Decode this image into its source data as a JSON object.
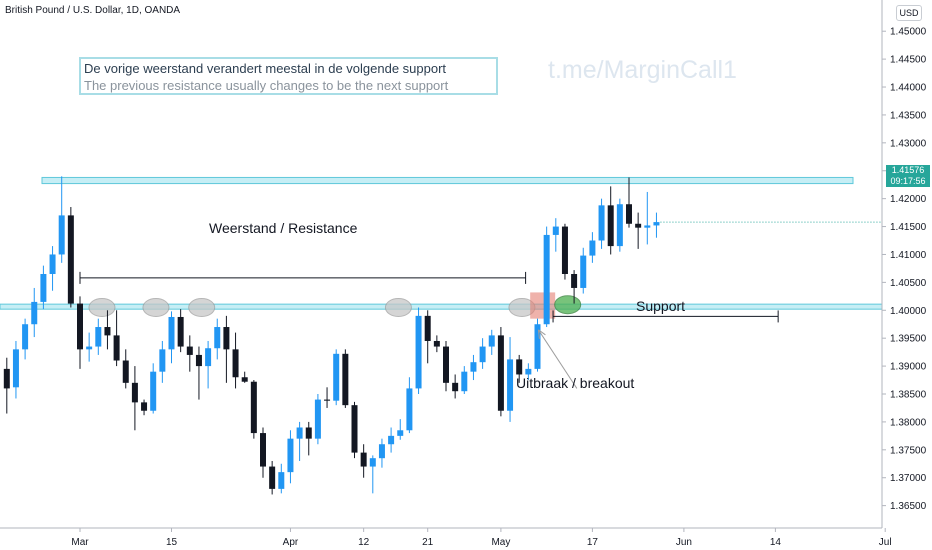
{
  "header": {
    "symbol": "British Pound / U.S. Dollar, 1D, OANDA",
    "currency": "USD"
  },
  "annotations": {
    "line1": "De vorige weerstand verandert meestal in de volgende support",
    "line2": "The previous resistance usually changes to be the next support",
    "watermark": "t.me/MarginCall1",
    "resistance_label": "Weerstand / Resistance",
    "support_label": "Support",
    "breakout_label": "Uitbraak / breakout"
  },
  "price_tag": {
    "price": "1.41576",
    "time": "09:17:56"
  },
  "colors": {
    "up": "#2196f3",
    "down": "#131722",
    "zone": "#c6eef5",
    "zone_border": "#5fc8da",
    "tag": "#26a69a"
  },
  "chart_data": {
    "type": "candlestick",
    "ylim": [
      1.3635,
      1.4538
    ],
    "y_ticks": [
      "1.45000",
      "1.44500",
      "1.44000",
      "1.43500",
      "1.43000",
      "1.42500",
      "1.42000",
      "1.41500",
      "1.41000",
      "1.40500",
      "1.40000",
      "1.39500",
      "1.39000",
      "1.38500",
      "1.38000",
      "1.37500",
      "1.37000",
      "1.36500"
    ],
    "x_ticks": [
      {
        "label": "Mar",
        "day": 0
      },
      {
        "label": "15",
        "day": 10
      },
      {
        "label": "Apr",
        "day": 23
      },
      {
        "label": "12",
        "day": 31
      },
      {
        "label": "21",
        "day": 38
      },
      {
        "label": "May",
        "day": 46
      },
      {
        "label": "17",
        "day": 56
      },
      {
        "label": "Jun",
        "day": 66
      },
      {
        "label": "14",
        "day": 76
      },
      {
        "label": "Jul",
        "day": 88
      }
    ],
    "candles": [
      {
        "day": -8,
        "o": 1.3895,
        "h": 1.3915,
        "l": 1.3815,
        "c": 1.386
      },
      {
        "day": -7,
        "o": 1.3862,
        "h": 1.3945,
        "l": 1.3842,
        "c": 1.393
      },
      {
        "day": -6,
        "o": 1.393,
        "h": 1.3985,
        "l": 1.3912,
        "c": 1.3975
      },
      {
        "day": -5,
        "o": 1.3975,
        "h": 1.404,
        "l": 1.3952,
        "c": 1.4015
      },
      {
        "day": -4,
        "o": 1.4015,
        "h": 1.408,
        "l": 1.4002,
        "c": 1.4065
      },
      {
        "day": -3,
        "o": 1.4065,
        "h": 1.4115,
        "l": 1.4035,
        "c": 1.41
      },
      {
        "day": -2,
        "o": 1.41,
        "h": 1.424,
        "l": 1.4085,
        "c": 1.417
      },
      {
        "day": -1,
        "o": 1.417,
        "h": 1.4185,
        "l": 1.4005,
        "c": 1.4012
      },
      {
        "day": 0,
        "o": 1.4012,
        "h": 1.4025,
        "l": 1.3895,
        "c": 1.393
      },
      {
        "day": 1,
        "o": 1.393,
        "h": 1.396,
        "l": 1.3908,
        "c": 1.3935
      },
      {
        "day": 2,
        "o": 1.3935,
        "h": 1.3985,
        "l": 1.392,
        "c": 1.397
      },
      {
        "day": 3,
        "o": 1.397,
        "h": 1.4,
        "l": 1.393,
        "c": 1.3955
      },
      {
        "day": 4,
        "o": 1.3955,
        "h": 1.4,
        "l": 1.39,
        "c": 1.391
      },
      {
        "day": 5,
        "o": 1.391,
        "h": 1.393,
        "l": 1.386,
        "c": 1.387
      },
      {
        "day": 6,
        "o": 1.387,
        "h": 1.39,
        "l": 1.3785,
        "c": 1.3835
      },
      {
        "day": 7,
        "o": 1.3835,
        "h": 1.384,
        "l": 1.3812,
        "c": 1.382
      },
      {
        "day": 8,
        "o": 1.382,
        "h": 1.3905,
        "l": 1.3815,
        "c": 1.389
      },
      {
        "day": 9,
        "o": 1.389,
        "h": 1.3945,
        "l": 1.387,
        "c": 1.393
      },
      {
        "day": 10,
        "o": 1.393,
        "h": 1.3998,
        "l": 1.3905,
        "c": 1.3988
      },
      {
        "day": 11,
        "o": 1.3988,
        "h": 1.4002,
        "l": 1.3925,
        "c": 1.3935
      },
      {
        "day": 12,
        "o": 1.3935,
        "h": 1.3955,
        "l": 1.389,
        "c": 1.392
      },
      {
        "day": 13,
        "o": 1.392,
        "h": 1.3935,
        "l": 1.384,
        "c": 1.39
      },
      {
        "day": 14,
        "o": 1.39,
        "h": 1.3945,
        "l": 1.386,
        "c": 1.3932
      },
      {
        "day": 15,
        "o": 1.3932,
        "h": 1.3985,
        "l": 1.3912,
        "c": 1.397
      },
      {
        "day": 16,
        "o": 1.397,
        "h": 1.399,
        "l": 1.387,
        "c": 1.393
      },
      {
        "day": 17,
        "o": 1.393,
        "h": 1.396,
        "l": 1.386,
        "c": 1.388
      },
      {
        "day": 18,
        "o": 1.388,
        "h": 1.389,
        "l": 1.387,
        "c": 1.3872
      },
      {
        "day": 19,
        "o": 1.3872,
        "h": 1.3875,
        "l": 1.377,
        "c": 1.378
      },
      {
        "day": 20,
        "o": 1.378,
        "h": 1.379,
        "l": 1.37,
        "c": 1.372
      },
      {
        "day": 21,
        "o": 1.372,
        "h": 1.373,
        "l": 1.367,
        "c": 1.368
      },
      {
        "day": 22,
        "o": 1.368,
        "h": 1.3725,
        "l": 1.3672,
        "c": 1.371
      },
      {
        "day": 23,
        "o": 1.371,
        "h": 1.3785,
        "l": 1.369,
        "c": 1.377
      },
      {
        "day": 24,
        "o": 1.377,
        "h": 1.38,
        "l": 1.373,
        "c": 1.379
      },
      {
        "day": 25,
        "o": 1.379,
        "h": 1.38,
        "l": 1.374,
        "c": 1.377
      },
      {
        "day": 26,
        "o": 1.377,
        "h": 1.385,
        "l": 1.376,
        "c": 1.384
      },
      {
        "day": 27,
        "o": 1.384,
        "h": 1.3862,
        "l": 1.3825,
        "c": 1.3838
      },
      {
        "day": 28,
        "o": 1.3838,
        "h": 1.393,
        "l": 1.383,
        "c": 1.3922
      },
      {
        "day": 29,
        "o": 1.3922,
        "h": 1.393,
        "l": 1.3825,
        "c": 1.383
      },
      {
        "day": 30,
        "o": 1.383,
        "h": 1.3836,
        "l": 1.3735,
        "c": 1.3745
      },
      {
        "day": 31,
        "o": 1.3745,
        "h": 1.376,
        "l": 1.37,
        "c": 1.372
      },
      {
        "day": 32,
        "o": 1.372,
        "h": 1.374,
        "l": 1.3672,
        "c": 1.3735
      },
      {
        "day": 33,
        "o": 1.3735,
        "h": 1.377,
        "l": 1.3718,
        "c": 1.376
      },
      {
        "day": 34,
        "o": 1.376,
        "h": 1.379,
        "l": 1.3745,
        "c": 1.3775
      },
      {
        "day": 35,
        "o": 1.3775,
        "h": 1.3805,
        "l": 1.3768,
        "c": 1.3785
      },
      {
        "day": 36,
        "o": 1.3785,
        "h": 1.388,
        "l": 1.378,
        "c": 1.386
      },
      {
        "day": 37,
        "o": 1.386,
        "h": 1.4005,
        "l": 1.385,
        "c": 1.399
      },
      {
        "day": 38,
        "o": 1.399,
        "h": 1.4,
        "l": 1.3905,
        "c": 1.3945
      },
      {
        "day": 39,
        "o": 1.3945,
        "h": 1.3955,
        "l": 1.3925,
        "c": 1.3935
      },
      {
        "day": 40,
        "o": 1.3935,
        "h": 1.3945,
        "l": 1.3855,
        "c": 1.387
      },
      {
        "day": 41,
        "o": 1.387,
        "h": 1.3885,
        "l": 1.3842,
        "c": 1.3855
      },
      {
        "day": 42,
        "o": 1.3855,
        "h": 1.39,
        "l": 1.385,
        "c": 1.389
      },
      {
        "day": 43,
        "o": 1.389,
        "h": 1.392,
        "l": 1.3875,
        "c": 1.3907
      },
      {
        "day": 44,
        "o": 1.3907,
        "h": 1.395,
        "l": 1.3895,
        "c": 1.3935
      },
      {
        "day": 45,
        "o": 1.3935,
        "h": 1.3965,
        "l": 1.392,
        "c": 1.3955
      },
      {
        "day": 46,
        "o": 1.3955,
        "h": 1.397,
        "l": 1.381,
        "c": 1.382
      },
      {
        "day": 47,
        "o": 1.382,
        "h": 1.3952,
        "l": 1.38,
        "c": 1.3912
      },
      {
        "day": 48,
        "o": 1.3912,
        "h": 1.392,
        "l": 1.387,
        "c": 1.3885
      },
      {
        "day": 49,
        "o": 1.3885,
        "h": 1.3905,
        "l": 1.3875,
        "c": 1.3895
      },
      {
        "day": 50,
        "o": 1.3895,
        "h": 1.3985,
        "l": 1.389,
        "c": 1.3975
      },
      {
        "day": 51,
        "o": 1.3975,
        "h": 1.415,
        "l": 1.397,
        "c": 1.4135
      },
      {
        "day": 52,
        "o": 1.4135,
        "h": 1.4165,
        "l": 1.4105,
        "c": 1.415
      },
      {
        "day": 53,
        "o": 1.415,
        "h": 1.4155,
        "l": 1.4055,
        "c": 1.4065
      },
      {
        "day": 54,
        "o": 1.4065,
        "h": 1.4072,
        "l": 1.4012,
        "c": 1.404
      },
      {
        "day": 55,
        "o": 1.404,
        "h": 1.4112,
        "l": 1.403,
        "c": 1.4098
      },
      {
        "day": 56,
        "o": 1.4098,
        "h": 1.414,
        "l": 1.4085,
        "c": 1.4125
      },
      {
        "day": 57,
        "o": 1.4125,
        "h": 1.42,
        "l": 1.411,
        "c": 1.4188
      },
      {
        "day": 58,
        "o": 1.4188,
        "h": 1.4222,
        "l": 1.41,
        "c": 1.4115
      },
      {
        "day": 59,
        "o": 1.4115,
        "h": 1.42,
        "l": 1.4105,
        "c": 1.419
      },
      {
        "day": 60,
        "o": 1.419,
        "h": 1.4238,
        "l": 1.4148,
        "c": 1.4155
      },
      {
        "day": 61,
        "o": 1.4155,
        "h": 1.4175,
        "l": 1.411,
        "c": 1.4148
      },
      {
        "day": 62,
        "o": 1.4148,
        "h": 1.4212,
        "l": 1.4118,
        "c": 1.4152
      },
      {
        "day": 63,
        "o": 1.4152,
        "h": 1.4175,
        "l": 1.413,
        "c": 1.4158
      }
    ],
    "resistance_zone": [
      1.4227,
      1.4238
    ],
    "support_zone": [
      1.4002,
      1.4011
    ]
  }
}
